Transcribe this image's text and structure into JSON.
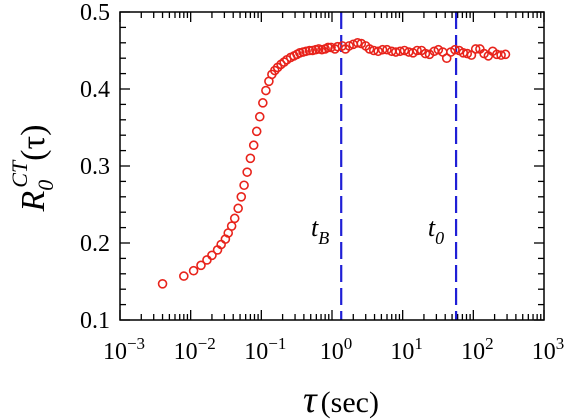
{
  "chart_data": {
    "type": "scatter",
    "x_scale": "log",
    "xlim": [
      0.001,
      1000
    ],
    "ylim": [
      0.1,
      0.5
    ],
    "x_ticks": [
      {
        "value": 0.001,
        "base": "10",
        "exp": "−3"
      },
      {
        "value": 0.01,
        "base": "10",
        "exp": "−2"
      },
      {
        "value": 0.1,
        "base": "10",
        "exp": "−1"
      },
      {
        "value": 1,
        "base": "10",
        "exp": "0"
      },
      {
        "value": 10,
        "base": "10",
        "exp": "1"
      },
      {
        "value": 100,
        "base": "10",
        "exp": "2"
      },
      {
        "value": 1000,
        "base": "10",
        "exp": "3"
      }
    ],
    "y_ticks": [
      {
        "value": 0.1,
        "label": "0.1"
      },
      {
        "value": 0.2,
        "label": "0.2"
      },
      {
        "value": 0.3,
        "label": "0.3"
      },
      {
        "value": 0.4,
        "label": "0.4"
      },
      {
        "value": 0.5,
        "label": "0.5"
      }
    ],
    "xlabel": {
      "symbol": "τ",
      "unit": "(sec)"
    },
    "ylabel": {
      "main": "R",
      "sub": "0",
      "sup": "CT",
      "arg": "(τ)"
    },
    "marker_color": "#e8231b",
    "line_color": "#1f1fd6",
    "vlines": [
      {
        "name": "t_B",
        "x": 1.35,
        "label": "t",
        "sub": "B"
      },
      {
        "name": "t_0",
        "x": 57,
        "label": "t",
        "sub": "0"
      }
    ],
    "series": [
      {
        "x": [
          0.004,
          0.008,
          0.011,
          0.014,
          0.017,
          0.02,
          0.024,
          0.027,
          0.031,
          0.034,
          0.038,
          0.042,
          0.047,
          0.052,
          0.057,
          0.063,
          0.07,
          0.078,
          0.086,
          0.095,
          0.105,
          0.116,
          0.128,
          0.141,
          0.155,
          0.17,
          0.19,
          0.21,
          0.23,
          0.26,
          0.29,
          0.32,
          0.35,
          0.39,
          0.43,
          0.48,
          0.53,
          0.59,
          0.65,
          0.72,
          0.8,
          0.88,
          0.97,
          1.1,
          1.2,
          1.4,
          1.55,
          1.75,
          2.0,
          2.3,
          2.6,
          3.0,
          3.4,
          3.9,
          4.5,
          5.2,
          6.0,
          7.0,
          8.0,
          9.2,
          10.6,
          12.2,
          14,
          16,
          18.5,
          21,
          24,
          28,
          32,
          37,
          42,
          48,
          55,
          63,
          72,
          82,
          94,
          108,
          124,
          142,
          163,
          188,
          215,
          247,
          285
        ],
        "y": [
          0.147,
          0.157,
          0.164,
          0.171,
          0.178,
          0.184,
          0.191,
          0.198,
          0.205,
          0.213,
          0.222,
          0.232,
          0.245,
          0.26,
          0.275,
          0.292,
          0.31,
          0.327,
          0.345,
          0.364,
          0.382,
          0.398,
          0.41,
          0.419,
          0.424,
          0.428,
          0.432,
          0.435,
          0.438,
          0.441,
          0.443,
          0.445,
          0.447,
          0.448,
          0.449,
          0.45,
          0.45,
          0.451,
          0.452,
          0.451,
          0.452,
          0.454,
          0.454,
          0.452,
          0.455,
          0.456,
          0.452,
          0.456,
          0.458,
          0.46,
          0.459,
          0.456,
          0.452,
          0.45,
          0.449,
          0.451,
          0.451,
          0.449,
          0.448,
          0.449,
          0.45,
          0.448,
          0.447,
          0.45,
          0.45,
          0.446,
          0.445,
          0.449,
          0.451,
          0.448,
          0.44,
          0.448,
          0.451,
          0.45,
          0.447,
          0.446,
          0.444,
          0.452,
          0.452,
          0.446,
          0.443,
          0.449,
          0.445,
          0.444,
          0.445
        ]
      }
    ]
  }
}
